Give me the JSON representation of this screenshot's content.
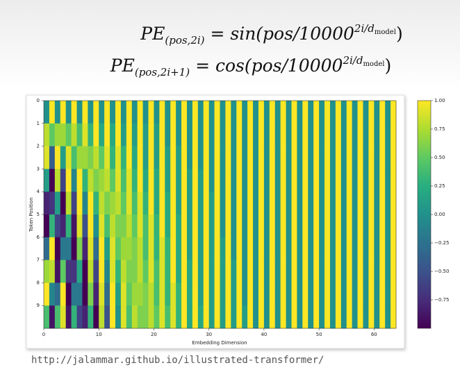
{
  "formulas": [
    {
      "lhs": "PE",
      "sub": "(pos,2i)",
      "rhs": "= sin(pos/10000",
      "sup": "2i/d",
      "supsub": "model",
      "close": ")"
    },
    {
      "lhs": "PE",
      "sub": "(pos,2i+1)",
      "rhs": "= cos(pos/10000",
      "sup": "2i/d",
      "supsub": "model",
      "close": ")"
    }
  ],
  "chart_data": {
    "type": "heatmap",
    "xlabel": "Embedding Dimension",
    "ylabel": "Token Position",
    "xlim": [
      0,
      64
    ],
    "ylim": [
      10,
      0
    ],
    "xticks": [
      0,
      10,
      20,
      30,
      40,
      50,
      60
    ],
    "yticks": [
      0,
      1,
      2,
      3,
      4,
      5,
      6,
      7,
      8,
      9
    ],
    "clim": [
      -1,
      1
    ],
    "cticks": [
      {
        "value": -0.75,
        "label": "−0.75"
      },
      {
        "value": -0.5,
        "label": "−0.50"
      },
      {
        "value": -0.25,
        "label": "−0.25"
      },
      {
        "value": 0,
        "label": "0.00"
      },
      {
        "value": 0.25,
        "label": "0.25"
      },
      {
        "value": 0.5,
        "label": "0.50"
      },
      {
        "value": 0.75,
        "label": "0.75"
      },
      {
        "value": 1,
        "label": "1.00"
      }
    ],
    "colormap": [
      "#440154",
      "#472d7b",
      "#3b528b",
      "#2c728e",
      "#21918c",
      "#28ae80",
      "#5ec962",
      "#addc30",
      "#fde725"
    ],
    "values": [
      [
        0,
        1,
        0,
        1,
        0,
        1,
        0,
        1,
        0,
        1,
        0,
        1,
        0,
        1,
        0,
        1,
        0,
        1,
        0,
        1,
        0,
        1,
        0,
        1,
        0,
        1,
        0,
        1,
        0,
        1,
        0,
        1,
        0,
        1,
        0,
        1,
        0,
        1,
        0,
        1,
        0,
        1,
        0,
        1,
        0,
        1,
        0,
        1,
        0,
        1,
        0,
        1,
        0,
        1,
        0,
        1,
        0,
        1,
        0,
        1,
        0,
        1,
        0,
        1
      ],
      [
        0.8,
        0.5,
        0.7,
        0.7,
        0.5,
        0.8,
        0.4,
        0.9,
        0.3,
        1,
        0.2,
        1,
        0.2,
        1,
        0.1,
        1,
        0.1,
        1,
        0.1,
        1,
        0.1,
        1,
        0,
        1,
        0,
        1,
        0,
        1,
        0,
        1,
        0,
        1,
        0,
        1,
        0,
        1,
        0,
        1,
        0,
        1,
        0,
        1,
        0,
        1,
        0,
        1,
        0,
        1,
        0,
        1,
        0,
        1,
        0,
        1,
        0,
        1,
        0,
        1,
        0,
        1,
        0,
        1,
        0,
        1
      ],
      [
        0.9,
        -0.4,
        1,
        0.1,
        0.9,
        0.4,
        0.7,
        0.7,
        0.6,
        0.8,
        0.5,
        0.9,
        0.3,
        0.9,
        0.3,
        1,
        0.2,
        1,
        0.1,
        1,
        0.1,
        1,
        0.1,
        1,
        0.1,
        1,
        0,
        1,
        0,
        1,
        0,
        1,
        0,
        1,
        0,
        1,
        0,
        1,
        0,
        1,
        0,
        1,
        0,
        1,
        0,
        1,
        0,
        1,
        0,
        1,
        0,
        1,
        0,
        1,
        0,
        1,
        0,
        1,
        0,
        1,
        0,
        1,
        0,
        1
      ],
      [
        0.1,
        -1,
        0.8,
        -0.6,
        1,
        -0.1,
        1,
        0.3,
        0.8,
        0.6,
        0.7,
        0.8,
        0.5,
        0.9,
        0.4,
        0.9,
        0.3,
        1,
        0.2,
        1,
        0.2,
        1,
        0.1,
        1,
        0.1,
        1,
        0.1,
        1,
        0.1,
        1,
        0,
        1,
        0,
        1,
        0,
        1,
        0,
        1,
        0,
        1,
        0,
        1,
        0,
        1,
        0,
        1,
        0,
        1,
        0,
        1,
        0,
        1,
        0,
        1,
        0,
        1,
        0,
        1,
        0,
        1,
        0,
        1,
        0,
        1
      ],
      [
        -0.8,
        -0.7,
        0.1,
        -1,
        0.8,
        -0.6,
        1,
        -0.1,
        1,
        0.3,
        0.8,
        0.6,
        0.7,
        0.8,
        0.5,
        0.9,
        0.4,
        0.9,
        0.3,
        1,
        0.2,
        1,
        0.2,
        1,
        0.1,
        1,
        0.1,
        1,
        0.1,
        1,
        0.1,
        1,
        0,
        1,
        0,
        1,
        0,
        1,
        0,
        1,
        0,
        1,
        0,
        1,
        0,
        1,
        0,
        1,
        0,
        1,
        0,
        1,
        0,
        1,
        0,
        1,
        0,
        1,
        0,
        1,
        0,
        1,
        0,
        1
      ],
      [
        -1,
        0.3,
        -0.6,
        -0.8,
        0.3,
        -0.9,
        0.9,
        -0.5,
        1,
        0,
        0.9,
        0.4,
        0.8,
        0.6,
        0.6,
        0.8,
        0.5,
        0.9,
        0.4,
        0.9,
        0.3,
        1,
        0.2,
        1,
        0.2,
        1,
        0.1,
        1,
        0.1,
        1,
        0.1,
        1,
        0,
        1,
        0,
        1,
        0,
        1,
        0,
        1,
        0,
        1,
        0,
        1,
        0,
        1,
        0,
        1,
        0,
        1,
        0,
        1,
        0,
        1,
        0,
        1,
        0,
        1,
        0,
        1,
        0,
        1,
        0,
        1
      ],
      [
        -0.3,
        1,
        -1,
        -0.2,
        -0.2,
        -1,
        0.6,
        -0.8,
        0.9,
        -0.3,
        1,
        0.1,
        0.9,
        0.5,
        0.7,
        0.7,
        0.6,
        0.8,
        0.4,
        0.9,
        0.3,
        0.9,
        0.3,
        1,
        0.2,
        1,
        0.1,
        1,
        0.1,
        1,
        0.1,
        1,
        0.1,
        1,
        0,
        1,
        0,
        1,
        0,
        1,
        0,
        1,
        0,
        1,
        0,
        1,
        0,
        1,
        0,
        1,
        0,
        1,
        0,
        1,
        0,
        1,
        0,
        1,
        0,
        1,
        0,
        1,
        0,
        1
      ],
      [
        0.7,
        0.8,
        -0.9,
        0.5,
        -0.7,
        -0.7,
        0.2,
        -1,
        0.8,
        -0.6,
        1,
        -0.1,
        0.9,
        0.3,
        0.8,
        0.6,
        0.6,
        0.8,
        0.5,
        0.9,
        0.4,
        0.9,
        0.3,
        1,
        0.2,
        1,
        0.2,
        1,
        0.1,
        1,
        0.1,
        1,
        0.1,
        1,
        0.1,
        1,
        0,
        1,
        0,
        1,
        0,
        1,
        0,
        1,
        0,
        1,
        0,
        1,
        0,
        1,
        0,
        1,
        0,
        1,
        0,
        1,
        0,
        1,
        0,
        1,
        0,
        1,
        0,
        1
      ],
      [
        1,
        -0.1,
        -0.3,
        1,
        -1,
        -0.2,
        -0.2,
        -1,
        0.6,
        -0.8,
        0.9,
        -0.3,
        1,
        0.1,
        0.9,
        0.5,
        0.7,
        0.7,
        0.6,
        0.8,
        0.4,
        0.9,
        0.3,
        0.9,
        0.3,
        1,
        0.2,
        1,
        0.1,
        1,
        0.1,
        1,
        0.1,
        1,
        0.1,
        1,
        0,
        1,
        0,
        1,
        0,
        1,
        0,
        1,
        0,
        1,
        0,
        1,
        0,
        1,
        0,
        1,
        0,
        1,
        0,
        1,
        0,
        1,
        0,
        1,
        0,
        1,
        0,
        1
      ],
      [
        0.4,
        -0.9,
        0.4,
        0.9,
        -0.9,
        0.3,
        -0.6,
        -0.8,
        0.3,
        -1,
        0.8,
        -0.5,
        1,
        0,
        0.9,
        0.4,
        0.8,
        0.6,
        0.6,
        0.8,
        0.5,
        0.9,
        0.4,
        0.9,
        0.3,
        1,
        0.2,
        1,
        0.2,
        1,
        0.1,
        1,
        0.1,
        1,
        0.1,
        1,
        0.1,
        1,
        0,
        1,
        0,
        1,
        0,
        1,
        0,
        1,
        0,
        1,
        0,
        1,
        0,
        1,
        0,
        1,
        0,
        1,
        0,
        1,
        0,
        1,
        0,
        1,
        0,
        1
      ]
    ]
  },
  "footer": "http://jalammar.github.io/illustrated-transformer/"
}
